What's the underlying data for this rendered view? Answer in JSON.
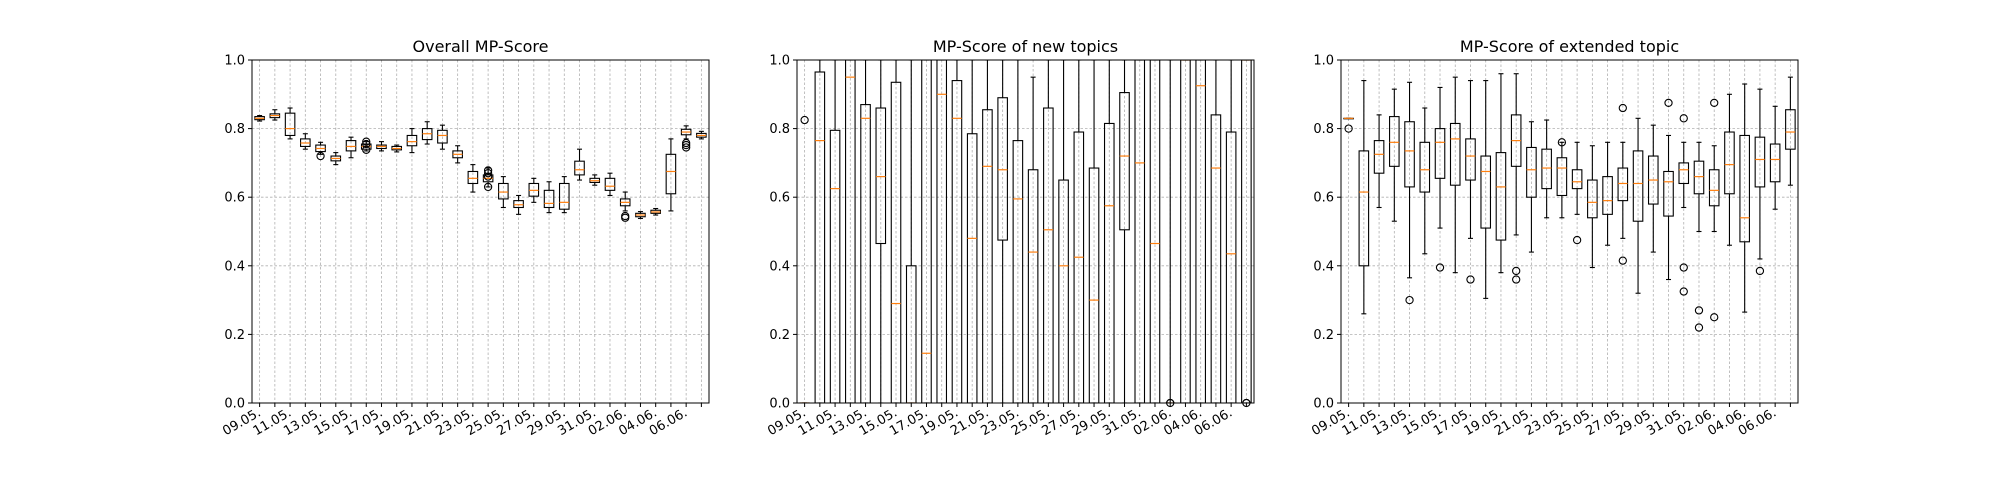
{
  "x_tick_labels": [
    "09.05.",
    "11.05.",
    "13.05.",
    "15.05.",
    "17.05.",
    "19.05.",
    "21.05.",
    "23.05.",
    "25.05.",
    "27.05.",
    "29.05.",
    "31.05.",
    "02.06.",
    "04.06.",
    "06.06."
  ],
  "chart_data": [
    {
      "type": "box",
      "title": "Overall MP-Score",
      "xlabel": "",
      "ylabel": "",
      "ylim": [
        0,
        1
      ],
      "yticks": [
        "0.0",
        "0.2",
        "0.4",
        "0.6",
        "0.8",
        "1.0"
      ],
      "grid": true,
      "boxes": [
        {
          "q1": 0.826,
          "med": 0.83,
          "q3": 0.835,
          "wlo": 0.822,
          "whi": 0.838,
          "out": []
        },
        {
          "q1": 0.832,
          "med": 0.838,
          "q3": 0.843,
          "wlo": 0.825,
          "whi": 0.855,
          "out": []
        },
        {
          "q1": 0.78,
          "med": 0.8,
          "q3": 0.845,
          "wlo": 0.77,
          "whi": 0.86,
          "out": []
        },
        {
          "q1": 0.748,
          "med": 0.758,
          "q3": 0.77,
          "wlo": 0.74,
          "whi": 0.785,
          "out": []
        },
        {
          "q1": 0.733,
          "med": 0.742,
          "q3": 0.752,
          "wlo": 0.725,
          "whi": 0.76,
          "out": [
            0.72
          ]
        },
        {
          "q1": 0.706,
          "med": 0.713,
          "q3": 0.72,
          "wlo": 0.695,
          "whi": 0.73,
          "out": []
        },
        {
          "q1": 0.735,
          "med": 0.748,
          "q3": 0.765,
          "wlo": 0.715,
          "whi": 0.775,
          "out": []
        },
        {
          "q1": 0.74,
          "med": 0.748,
          "q3": 0.755,
          "wlo": 0.735,
          "whi": 0.762,
          "out": [
            0.738,
            0.755,
            0.762
          ]
        },
        {
          "q1": 0.742,
          "med": 0.748,
          "q3": 0.752,
          "wlo": 0.735,
          "whi": 0.762,
          "out": []
        },
        {
          "q1": 0.738,
          "med": 0.742,
          "q3": 0.748,
          "wlo": 0.732,
          "whi": 0.752,
          "out": []
        },
        {
          "q1": 0.75,
          "med": 0.762,
          "q3": 0.78,
          "wlo": 0.73,
          "whi": 0.8,
          "out": []
        },
        {
          "q1": 0.768,
          "med": 0.785,
          "q3": 0.8,
          "wlo": 0.755,
          "whi": 0.82,
          "out": []
        },
        {
          "q1": 0.758,
          "med": 0.78,
          "q3": 0.795,
          "wlo": 0.74,
          "whi": 0.81,
          "out": []
        },
        {
          "q1": 0.715,
          "med": 0.725,
          "q3": 0.735,
          "wlo": 0.7,
          "whi": 0.75,
          "out": []
        },
        {
          "q1": 0.64,
          "med": 0.655,
          "q3": 0.675,
          "wlo": 0.615,
          "whi": 0.695,
          "out": []
        },
        {
          "q1": 0.645,
          "med": 0.655,
          "q3": 0.665,
          "wlo": 0.63,
          "whi": 0.685,
          "out": [
            0.63,
            0.66,
            0.67,
            0.678
          ]
        },
        {
          "q1": 0.595,
          "med": 0.615,
          "q3": 0.64,
          "wlo": 0.57,
          "whi": 0.66,
          "out": []
        },
        {
          "q1": 0.57,
          "med": 0.578,
          "q3": 0.59,
          "wlo": 0.55,
          "whi": 0.605,
          "out": []
        },
        {
          "q1": 0.603,
          "med": 0.62,
          "q3": 0.64,
          "wlo": 0.585,
          "whi": 0.655,
          "out": []
        },
        {
          "q1": 0.57,
          "med": 0.582,
          "q3": 0.62,
          "wlo": 0.555,
          "whi": 0.645,
          "out": []
        },
        {
          "q1": 0.565,
          "med": 0.585,
          "q3": 0.64,
          "wlo": 0.555,
          "whi": 0.66,
          "out": []
        },
        {
          "q1": 0.665,
          "med": 0.68,
          "q3": 0.705,
          "wlo": 0.65,
          "whi": 0.74,
          "out": []
        },
        {
          "q1": 0.643,
          "med": 0.648,
          "q3": 0.655,
          "wlo": 0.635,
          "whi": 0.665,
          "out": []
        },
        {
          "q1": 0.62,
          "med": 0.632,
          "q3": 0.655,
          "wlo": 0.605,
          "whi": 0.67,
          "out": []
        },
        {
          "q1": 0.575,
          "med": 0.585,
          "q3": 0.595,
          "wlo": 0.56,
          "whi": 0.615,
          "out": [
            0.54,
            0.545
          ]
        },
        {
          "q1": 0.543,
          "med": 0.548,
          "q3": 0.553,
          "wlo": 0.538,
          "whi": 0.558,
          "out": []
        },
        {
          "q1": 0.553,
          "med": 0.557,
          "q3": 0.562,
          "wlo": 0.548,
          "whi": 0.567,
          "out": []
        },
        {
          "q1": 0.61,
          "med": 0.675,
          "q3": 0.725,
          "wlo": 0.56,
          "whi": 0.77,
          "out": []
        },
        {
          "q1": 0.782,
          "med": 0.79,
          "q3": 0.798,
          "wlo": 0.77,
          "whi": 0.808,
          "out": [
            0.745,
            0.752,
            0.758
          ]
        },
        {
          "q1": 0.775,
          "med": 0.78,
          "q3": 0.786,
          "wlo": 0.77,
          "whi": 0.792,
          "out": []
        }
      ]
    },
    {
      "type": "box",
      "title": "MP-Score of new topics",
      "xlabel": "",
      "ylabel": "",
      "ylim": [
        0,
        1
      ],
      "yticks": [
        "0.0",
        "0.2",
        "0.4",
        "0.6",
        "0.8",
        "1.0"
      ],
      "grid": true,
      "boxes": [
        {
          "q1": 0.0,
          "med": 0.0,
          "q3": 0.0,
          "wlo": 0.0,
          "whi": 0.0,
          "out": [
            0.825
          ]
        },
        {
          "q1": 0.0,
          "med": 0.765,
          "q3": 0.965,
          "wlo": 0.0,
          "whi": 1.0,
          "out": []
        },
        {
          "q1": 0.0,
          "med": 0.625,
          "q3": 0.795,
          "wlo": 0.0,
          "whi": 1.0,
          "out": []
        },
        {
          "q1": 0.0,
          "med": 0.95,
          "q3": 1.0,
          "wlo": 0.0,
          "whi": 1.0,
          "out": []
        },
        {
          "q1": 0.0,
          "med": 0.83,
          "q3": 0.87,
          "wlo": 0.0,
          "whi": 1.0,
          "out": []
        },
        {
          "q1": 0.465,
          "med": 0.66,
          "q3": 0.86,
          "wlo": 0.0,
          "whi": 1.0,
          "out": []
        },
        {
          "q1": 0.0,
          "med": 0.29,
          "q3": 0.935,
          "wlo": 0.0,
          "whi": 1.0,
          "out": []
        },
        {
          "q1": 0.0,
          "med": 0.0,
          "q3": 0.4,
          "wlo": 0.0,
          "whi": 1.0,
          "out": []
        },
        {
          "q1": 0.0,
          "med": 0.145,
          "q3": 1.0,
          "wlo": 0.0,
          "whi": 1.0,
          "out": []
        },
        {
          "q1": 0.0,
          "med": 0.9,
          "q3": 1.0,
          "wlo": 0.0,
          "whi": 1.0,
          "out": []
        },
        {
          "q1": 0.0,
          "med": 0.83,
          "q3": 0.94,
          "wlo": 0.0,
          "whi": 1.0,
          "out": []
        },
        {
          "q1": 0.0,
          "med": 0.48,
          "q3": 0.785,
          "wlo": 0.0,
          "whi": 1.0,
          "out": []
        },
        {
          "q1": 0.0,
          "med": 0.69,
          "q3": 0.855,
          "wlo": 0.0,
          "whi": 1.0,
          "out": []
        },
        {
          "q1": 0.475,
          "med": 0.68,
          "q3": 0.89,
          "wlo": 0.0,
          "whi": 1.0,
          "out": []
        },
        {
          "q1": 0.0,
          "med": 0.595,
          "q3": 0.765,
          "wlo": 0.0,
          "whi": 1.0,
          "out": []
        },
        {
          "q1": 0.0,
          "med": 0.44,
          "q3": 0.68,
          "wlo": 0.0,
          "whi": 0.95,
          "out": []
        },
        {
          "q1": 0.0,
          "med": 0.505,
          "q3": 0.86,
          "wlo": 0.0,
          "whi": 1.0,
          "out": []
        },
        {
          "q1": 0.0,
          "med": 0.4,
          "q3": 0.65,
          "wlo": 0.0,
          "whi": 1.0,
          "out": []
        },
        {
          "q1": 0.0,
          "med": 0.425,
          "q3": 0.79,
          "wlo": 0.0,
          "whi": 1.0,
          "out": []
        },
        {
          "q1": 0.0,
          "med": 0.3,
          "q3": 0.685,
          "wlo": 0.0,
          "whi": 1.0,
          "out": []
        },
        {
          "q1": 0.0,
          "med": 0.575,
          "q3": 0.815,
          "wlo": 0.0,
          "whi": 1.0,
          "out": []
        },
        {
          "q1": 0.505,
          "med": 0.72,
          "q3": 0.905,
          "wlo": 0.0,
          "whi": 1.0,
          "out": []
        },
        {
          "q1": 0.0,
          "med": 0.7,
          "q3": 1.0,
          "wlo": 0.0,
          "whi": 1.0,
          "out": []
        },
        {
          "q1": 0.0,
          "med": 0.465,
          "q3": 1.0,
          "wlo": 0.0,
          "whi": 1.0,
          "out": []
        },
        {
          "q1": 0.0,
          "med": 0.0,
          "q3": 0.0,
          "wlo": 0.0,
          "whi": 1.0,
          "out": [
            0.0
          ]
        },
        {
          "q1": 0.0,
          "med": 1.0,
          "q3": 1.0,
          "wlo": 0.0,
          "whi": 1.0,
          "out": []
        },
        {
          "q1": 0.0,
          "med": 0.925,
          "q3": 1.0,
          "wlo": 0.0,
          "whi": 1.0,
          "out": []
        },
        {
          "q1": 0.0,
          "med": 0.685,
          "q3": 0.84,
          "wlo": 0.0,
          "whi": 1.0,
          "out": []
        },
        {
          "q1": 0.0,
          "med": 0.435,
          "q3": 0.79,
          "wlo": 0.0,
          "whi": 1.0,
          "out": []
        },
        {
          "q1": 0.0,
          "med": 1.0,
          "q3": 1.0,
          "wlo": 0.0,
          "whi": 1.0,
          "out": [
            0.0
          ]
        }
      ]
    },
    {
      "type": "box",
      "title": "MP-Score of extended topic",
      "xlabel": "",
      "ylabel": "",
      "ylim": [
        0,
        1
      ],
      "yticks": [
        "0.0",
        "0.2",
        "0.4",
        "0.6",
        "0.8",
        "1.0"
      ],
      "grid": true,
      "boxes": [
        {
          "q1": 0.83,
          "med": 0.83,
          "q3": 0.83,
          "wlo": 0.83,
          "whi": 0.83,
          "out": [
            0.8
          ]
        },
        {
          "q1": 0.4,
          "med": 0.615,
          "q3": 0.735,
          "wlo": 0.26,
          "whi": 0.94,
          "out": []
        },
        {
          "q1": 0.67,
          "med": 0.725,
          "q3": 0.765,
          "wlo": 0.57,
          "whi": 0.84,
          "out": []
        },
        {
          "q1": 0.69,
          "med": 0.76,
          "q3": 0.835,
          "wlo": 0.53,
          "whi": 0.915,
          "out": []
        },
        {
          "q1": 0.63,
          "med": 0.735,
          "q3": 0.82,
          "wlo": 0.365,
          "whi": 0.935,
          "out": [
            0.3
          ]
        },
        {
          "q1": 0.615,
          "med": 0.68,
          "q3": 0.76,
          "wlo": 0.435,
          "whi": 0.86,
          "out": []
        },
        {
          "q1": 0.655,
          "med": 0.76,
          "q3": 0.8,
          "wlo": 0.51,
          "whi": 0.92,
          "out": [
            0.395
          ]
        },
        {
          "q1": 0.635,
          "med": 0.77,
          "q3": 0.815,
          "wlo": 0.38,
          "whi": 0.95,
          "out": []
        },
        {
          "q1": 0.65,
          "med": 0.72,
          "q3": 0.77,
          "wlo": 0.48,
          "whi": 0.94,
          "out": [
            0.36
          ]
        },
        {
          "q1": 0.51,
          "med": 0.675,
          "q3": 0.72,
          "wlo": 0.305,
          "whi": 0.94,
          "out": []
        },
        {
          "q1": 0.475,
          "med": 0.63,
          "q3": 0.73,
          "wlo": 0.38,
          "whi": 0.96,
          "out": []
        },
        {
          "q1": 0.69,
          "med": 0.765,
          "q3": 0.84,
          "wlo": 0.49,
          "whi": 0.96,
          "out": [
            0.385,
            0.36
          ]
        },
        {
          "q1": 0.6,
          "med": 0.68,
          "q3": 0.745,
          "wlo": 0.44,
          "whi": 0.82,
          "out": []
        },
        {
          "q1": 0.625,
          "med": 0.685,
          "q3": 0.74,
          "wlo": 0.54,
          "whi": 0.825,
          "out": []
        },
        {
          "q1": 0.605,
          "med": 0.685,
          "q3": 0.715,
          "wlo": 0.54,
          "whi": 0.76,
          "out": [
            0.76
          ]
        },
        {
          "q1": 0.625,
          "med": 0.645,
          "q3": 0.68,
          "wlo": 0.55,
          "whi": 0.76,
          "out": [
            0.475
          ]
        },
        {
          "q1": 0.54,
          "med": 0.585,
          "q3": 0.65,
          "wlo": 0.395,
          "whi": 0.75,
          "out": []
        },
        {
          "q1": 0.55,
          "med": 0.59,
          "q3": 0.66,
          "wlo": 0.46,
          "whi": 0.76,
          "out": []
        },
        {
          "q1": 0.59,
          "med": 0.64,
          "q3": 0.685,
          "wlo": 0.48,
          "whi": 0.76,
          "out": [
            0.86,
            0.415
          ]
        },
        {
          "q1": 0.53,
          "med": 0.64,
          "q3": 0.735,
          "wlo": 0.32,
          "whi": 0.83,
          "out": []
        },
        {
          "q1": 0.58,
          "med": 0.65,
          "q3": 0.72,
          "wlo": 0.44,
          "whi": 0.81,
          "out": []
        },
        {
          "q1": 0.545,
          "med": 0.645,
          "q3": 0.675,
          "wlo": 0.36,
          "whi": 0.78,
          "out": [
            0.875
          ]
        },
        {
          "q1": 0.64,
          "med": 0.68,
          "q3": 0.7,
          "wlo": 0.57,
          "whi": 0.76,
          "out": [
            0.83,
            0.395,
            0.325
          ]
        },
        {
          "q1": 0.61,
          "med": 0.66,
          "q3": 0.705,
          "wlo": 0.5,
          "whi": 0.76,
          "out": [
            0.27,
            0.22
          ]
        },
        {
          "q1": 0.575,
          "med": 0.62,
          "q3": 0.68,
          "wlo": 0.5,
          "whi": 0.75,
          "out": [
            0.875,
            0.25
          ]
        },
        {
          "q1": 0.61,
          "med": 0.695,
          "q3": 0.79,
          "wlo": 0.46,
          "whi": 0.9,
          "out": []
        },
        {
          "q1": 0.47,
          "med": 0.54,
          "q3": 0.78,
          "wlo": 0.265,
          "whi": 0.93,
          "out": []
        },
        {
          "q1": 0.63,
          "med": 0.71,
          "q3": 0.775,
          "wlo": 0.42,
          "whi": 0.915,
          "out": [
            0.385
          ]
        },
        {
          "q1": 0.645,
          "med": 0.71,
          "q3": 0.755,
          "wlo": 0.565,
          "whi": 0.865,
          "out": []
        },
        {
          "q1": 0.74,
          "med": 0.79,
          "q3": 0.855,
          "wlo": 0.635,
          "whi": 0.95,
          "out": []
        }
      ]
    }
  ]
}
